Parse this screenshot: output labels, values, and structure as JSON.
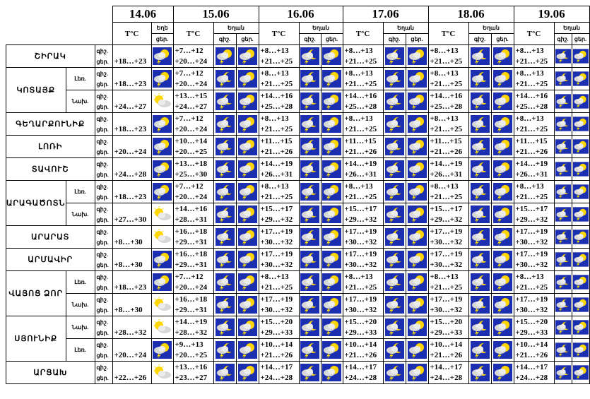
{
  "dates": [
    "14.06",
    "15.06",
    "16.06",
    "17.06",
    "18.06",
    "19.06"
  ],
  "headers": {
    "temp": "T°C",
    "precip": "Եղան",
    "precip_short": "Եղե",
    "day_short": "գիշ.",
    "day_short2": "ցեր."
  },
  "day_labels": {
    "night": "գիշ.",
    "day": "ցեր."
  },
  "colors": {
    "icon_bg": "#1c2fb0",
    "sun": "#ffd700",
    "cloud": "#d8d8d8",
    "lightning": "#ffe000"
  },
  "regions": [
    {
      "name": "ՇԻՐԱԿ",
      "area": "",
      "d14": "+18…+23",
      "icon14": "sun-storm",
      "temps": [
        [
          "+7…+12",
          "+20…+24"
        ],
        [
          "+8…+13",
          "+21…+25"
        ],
        [
          "+8…+13",
          "+21…+25"
        ],
        [
          "+8…+13",
          "+21…+25"
        ],
        [
          "+8…+13",
          "+21…+25"
        ]
      ],
      "icons": [
        [
          "sun-storm",
          "sun-storm"
        ],
        [
          "moon-storm",
          "sun-storm"
        ],
        [
          "moon-storm",
          "sun-storm"
        ],
        [
          "moon-storm",
          "sun-storm"
        ],
        [
          "moon-storm",
          "sun-storm"
        ]
      ]
    },
    {
      "name": "ԿՈՏԱՅՔ",
      "area": "Լեռ.",
      "d14": "+18…+23",
      "icon14": "sun-storm",
      "temps": [
        [
          "+7…+12",
          "+20…+24"
        ],
        [
          "+8…+13",
          "+21…+25"
        ],
        [
          "+8…+13",
          "+21…+25"
        ],
        [
          "+8…+13",
          "+21…+25"
        ],
        [
          "+8…+13",
          "+21…+25"
        ]
      ],
      "icons": [
        [
          "moon-storm",
          "sun-storm"
        ],
        [
          "moon-storm",
          "sun-storm"
        ],
        [
          "moon-storm",
          "sun-storm"
        ],
        [
          "moon-storm",
          "sun-storm"
        ],
        [
          "moon-storm",
          "sun-storm"
        ]
      ]
    },
    {
      "name": "",
      "area": "Նախ.",
      "d14": "+24…+27",
      "icon14": "sun-cloud",
      "temps": [
        [
          "+13…+15",
          "+24…+27"
        ],
        [
          "+14…+16",
          "+25…+28"
        ],
        [
          "+14…+16",
          "+25…+28"
        ],
        [
          "+14…+16",
          "+25…+28"
        ],
        [
          "+14…+16",
          "+25…+28"
        ]
      ],
      "icons": [
        [
          "moon-storm",
          "sun-storm"
        ],
        [
          "moon-storm",
          "sun-storm"
        ],
        [
          "moon-storm",
          "sun-storm"
        ],
        [
          "moon-storm",
          "sun-storm"
        ],
        [
          "moon-storm",
          "sun-storm"
        ]
      ]
    },
    {
      "name": "ԳԵՂԱՐՔՈՒՆԻՔ",
      "area": "",
      "d14": "+18…+23",
      "icon14": "sun-storm",
      "temps": [
        [
          "+7…+12",
          "+20…+24"
        ],
        [
          "+8…+13",
          "+21…+25"
        ],
        [
          "+8…+13",
          "+21…+25"
        ],
        [
          "+8…+13",
          "+21…+25"
        ],
        [
          "+8…+13",
          "+21…+25"
        ]
      ],
      "icons": [
        [
          "moon-storm",
          "sun-storm"
        ],
        [
          "moon-storm",
          "sun-storm"
        ],
        [
          "moon-storm",
          "sun-storm"
        ],
        [
          "moon-storm",
          "sun-storm"
        ],
        [
          "moon-storm",
          "sun-storm"
        ]
      ]
    },
    {
      "name": "ԼՈՌԻ",
      "area": "",
      "d14": "+20…+24",
      "icon14": "sun-storm",
      "temps": [
        [
          "+10…+14",
          "+20…+25"
        ],
        [
          "+11…+15",
          "+21…+26"
        ],
        [
          "+11…+15",
          "+21…+26"
        ],
        [
          "+11…+15",
          "+21…+26"
        ],
        [
          "+11…+15",
          "+21…+26"
        ]
      ],
      "icons": [
        [
          "moon-storm",
          "sun-storm"
        ],
        [
          "moon-storm",
          "sun-storm"
        ],
        [
          "moon-storm",
          "sun-storm"
        ],
        [
          "moon-storm",
          "sun-storm"
        ],
        [
          "moon-storm",
          "sun-storm"
        ]
      ]
    },
    {
      "name": "ՏԱՎՈՒՇ",
      "area": "",
      "d14": "+24…+28",
      "icon14": "sun-storm",
      "temps": [
        [
          "+13…+18",
          "+25…+30"
        ],
        [
          "+14…+19",
          "+26…+31"
        ],
        [
          "+14…+19",
          "+26…+31"
        ],
        [
          "+14…+19",
          "+26…+31"
        ],
        [
          "+14…+19",
          "+26…+31"
        ]
      ],
      "icons": [
        [
          "moon-storm",
          "sun-storm"
        ],
        [
          "moon-storm",
          "sun-storm"
        ],
        [
          "moon-storm",
          "sun-storm"
        ],
        [
          "moon-storm",
          "sun-storm"
        ],
        [
          "moon-storm",
          "sun-storm"
        ]
      ]
    },
    {
      "name": "ԱՐԱԳԱԾՈՏՆ",
      "area": "Լեռ.",
      "d14": "+18…+23",
      "icon14": "sun-storm",
      "temps": [
        [
          "+7…+12",
          "+20…+24"
        ],
        [
          "+8…+13",
          "+21…+25"
        ],
        [
          "+8…+13",
          "+21…+25"
        ],
        [
          "+8…+13",
          "+21…+25"
        ],
        [
          "+8…+13",
          "+21…+25"
        ]
      ],
      "icons": [
        [
          "moon-storm",
          "sun-storm"
        ],
        [
          "moon-storm",
          "sun-storm"
        ],
        [
          "moon-storm",
          "sun-storm"
        ],
        [
          "moon-storm",
          "sun-storm"
        ],
        [
          "moon-storm",
          "sun-storm"
        ]
      ]
    },
    {
      "name": "",
      "area": "Նախ.",
      "d14": "+27…+30",
      "icon14": "sun-cloud",
      "temps": [
        [
          "+14…+16",
          "+28…+31"
        ],
        [
          "+15…+17",
          "+29…+32"
        ],
        [
          "+15…+17",
          "+29…+32"
        ],
        [
          "+15…+17",
          "+29…+32"
        ],
        [
          "+15…+17",
          "+29…+32"
        ]
      ],
      "icons": [
        [
          "moon-storm",
          "sun-storm"
        ],
        [
          "moon-storm",
          "sun-storm"
        ],
        [
          "moon-storm",
          "sun-storm"
        ],
        [
          "moon-storm",
          "sun-storm"
        ],
        [
          "moon-storm",
          "sun-storm"
        ]
      ]
    },
    {
      "name": "ԱՐԱՐԱՏ",
      "area": "",
      "d14": "+8…+30",
      "icon14": "sun-cloud",
      "temps": [
        [
          "+16…+18",
          "+29…+31"
        ],
        [
          "+17…+19",
          "+30…+32"
        ],
        [
          "+17…+19",
          "+30…+32"
        ],
        [
          "+17…+19",
          "+30…+32"
        ],
        [
          "+17…+19",
          "+30…+32"
        ]
      ],
      "icons": [
        [
          "moon-storm",
          "sun-storm"
        ],
        [
          "moon-storm",
          "sun-storm"
        ],
        [
          "moon-storm",
          "sun-storm"
        ],
        [
          "moon-storm",
          "sun-storm"
        ],
        [
          "moon-storm",
          "sun-storm"
        ]
      ]
    },
    {
      "name": "ԱՐՄԱՎԻՐ",
      "area": "",
      "d14": "+8…+30",
      "icon14": "sun-storm",
      "temps": [
        [
          "+16…+18",
          "+29…+31"
        ],
        [
          "+17…+19",
          "+30…+32"
        ],
        [
          "+17…+19",
          "+30…+32"
        ],
        [
          "+17…+19",
          "+30…+32"
        ],
        [
          "+17…+19",
          "+30…+32"
        ]
      ],
      "icons": [
        [
          "moon-storm",
          "sun-storm"
        ],
        [
          "moon-storm",
          "sun-storm"
        ],
        [
          "moon-storm",
          "sun-storm"
        ],
        [
          "moon-storm",
          "sun-storm"
        ],
        [
          "moon-storm",
          "sun-storm"
        ]
      ]
    },
    {
      "name": "ՎԱՅՈՑ ՁՈՐ",
      "area": "Լեռ.",
      "d14": "+18…+23",
      "icon14": "sun-storm",
      "temps": [
        [
          "+7…+12",
          "+20…+24"
        ],
        [
          "+8…+13",
          "+21…+25"
        ],
        [
          "+8…+13",
          "+21…+25"
        ],
        [
          "+8…+13",
          "+21…+25"
        ],
        [
          "+8…+13",
          "+21…+25"
        ]
      ],
      "icons": [
        [
          "moon-storm",
          "sun-storm"
        ],
        [
          "moon-storm",
          "sun-storm"
        ],
        [
          "moon-storm",
          "sun-storm"
        ],
        [
          "moon-storm",
          "sun-storm"
        ],
        [
          "moon-storm",
          "sun-storm"
        ]
      ]
    },
    {
      "name": "",
      "area": "Նախ.",
      "d14": "+8…+30",
      "icon14": "sun-cloud",
      "temps": [
        [
          "+16…+18",
          "+29…+31"
        ],
        [
          "+17…+19",
          "+30…+32"
        ],
        [
          "+17…+19",
          "+30…+32"
        ],
        [
          "+17…+19",
          "+30…+32"
        ],
        [
          "+17…+19",
          "+30…+32"
        ]
      ],
      "icons": [
        [
          "moon-storm",
          "sun-storm"
        ],
        [
          "moon-storm",
          "sun-storm"
        ],
        [
          "moon-storm",
          "sun-storm"
        ],
        [
          "moon-storm",
          "sun-storm"
        ],
        [
          "moon-storm",
          "sun-storm"
        ]
      ]
    },
    {
      "name": "ՍՅՈՒՆԻՔ",
      "area": "Նախ.",
      "d14": "+28…+32",
      "icon14": "sun-cloud",
      "temps": [
        [
          "+14…+19",
          "+28…+32"
        ],
        [
          "+15…+20",
          "+29…+33"
        ],
        [
          "+15…+20",
          "+29…+33"
        ],
        [
          "+15…+20",
          "+29…+33"
        ],
        [
          "+15…+20",
          "+29…+33"
        ]
      ],
      "icons": [
        [
          "moon-storm",
          "sun-storm"
        ],
        [
          "moon-storm",
          "sun-storm"
        ],
        [
          "moon-storm",
          "sun-storm"
        ],
        [
          "moon-storm",
          "sun-storm"
        ],
        [
          "moon-storm",
          "sun-storm"
        ]
      ]
    },
    {
      "name": "",
      "area": "Լեռ.",
      "d14": "+20…+24",
      "icon14": "sun-storm",
      "temps": [
        [
          "+9…+13",
          "+20…+25"
        ],
        [
          "+10…+14",
          "+21…+26"
        ],
        [
          "+10…+14",
          "+21…+26"
        ],
        [
          "+10…+14",
          "+21…+26"
        ],
        [
          "+10…+14",
          "+21…+26"
        ]
      ],
      "icons": [
        [
          "moon-storm",
          "sun-storm"
        ],
        [
          "moon-storm",
          "sun-storm"
        ],
        [
          "moon-storm",
          "sun-storm"
        ],
        [
          "moon-storm",
          "sun-storm"
        ],
        [
          "moon-storm",
          "sun-storm"
        ]
      ]
    },
    {
      "name": "ԱՐՑԱԽ",
      "area": "",
      "d14": "+22…+26",
      "icon14": "sun-cloud",
      "temps": [
        [
          "+13…+16",
          "+23…+27"
        ],
        [
          "+14…+17",
          "+24…+28"
        ],
        [
          "+14…+17",
          "+24…+28"
        ],
        [
          "+14…+17",
          "+24…+28"
        ],
        [
          "+14…+17",
          "+24…+28"
        ]
      ],
      "icons": [
        [
          "moon-storm",
          "sun-storm"
        ],
        [
          "moon-storm",
          "sun-storm"
        ],
        [
          "moon-storm",
          "sun-storm"
        ],
        [
          "moon-storm",
          "sun-storm"
        ],
        [
          "moon-storm",
          "sun-storm"
        ]
      ]
    }
  ]
}
